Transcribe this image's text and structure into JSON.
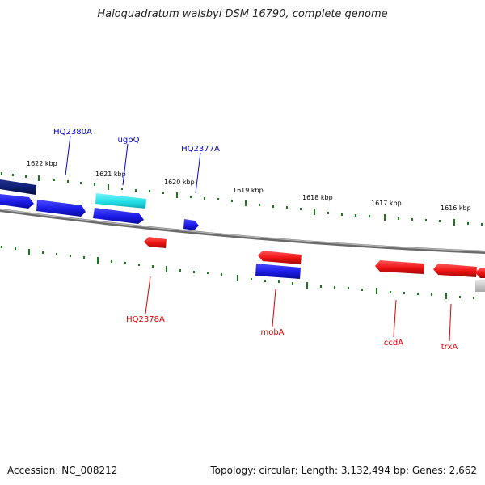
{
  "title": "Haloquadratum walsbyi DSM 16790, complete genome",
  "footer": {
    "accession": "Accession: NC_008212",
    "summary": "Topology: circular; Length: 3,132,494 bp; Genes: 2,662"
  },
  "colors": {
    "forward_label": "#0000cc",
    "reverse_label": "#dd0000",
    "tick": "#1a7a1a",
    "backbone": "#888888",
    "gene_blue": "#1a1ae6",
    "gene_navy": "#0a1a6e",
    "gene_cyan": "#22e0e8",
    "gene_red": "#ee1111",
    "gene_grey": "#c8c8c8"
  },
  "ticks": [
    {
      "label": "1622 kbp"
    },
    {
      "label": "1621 kbp"
    },
    {
      "label": "1620 kbp"
    },
    {
      "label": "1619 kbp"
    },
    {
      "label": "1618 kbp"
    },
    {
      "label": "1617 kbp"
    },
    {
      "label": "1616 kbp"
    }
  ],
  "gene_labels": [
    {
      "text": "HQ2380A",
      "strand": "forward"
    },
    {
      "text": "ugpQ",
      "strand": "forward"
    },
    {
      "text": "HQ2377A",
      "strand": "forward"
    },
    {
      "text": "HQ2378A",
      "strand": "reverse"
    },
    {
      "text": "mobA",
      "strand": "reverse"
    },
    {
      "text": "ccdA",
      "strand": "reverse"
    },
    {
      "text": "trxA",
      "strand": "reverse"
    }
  ]
}
